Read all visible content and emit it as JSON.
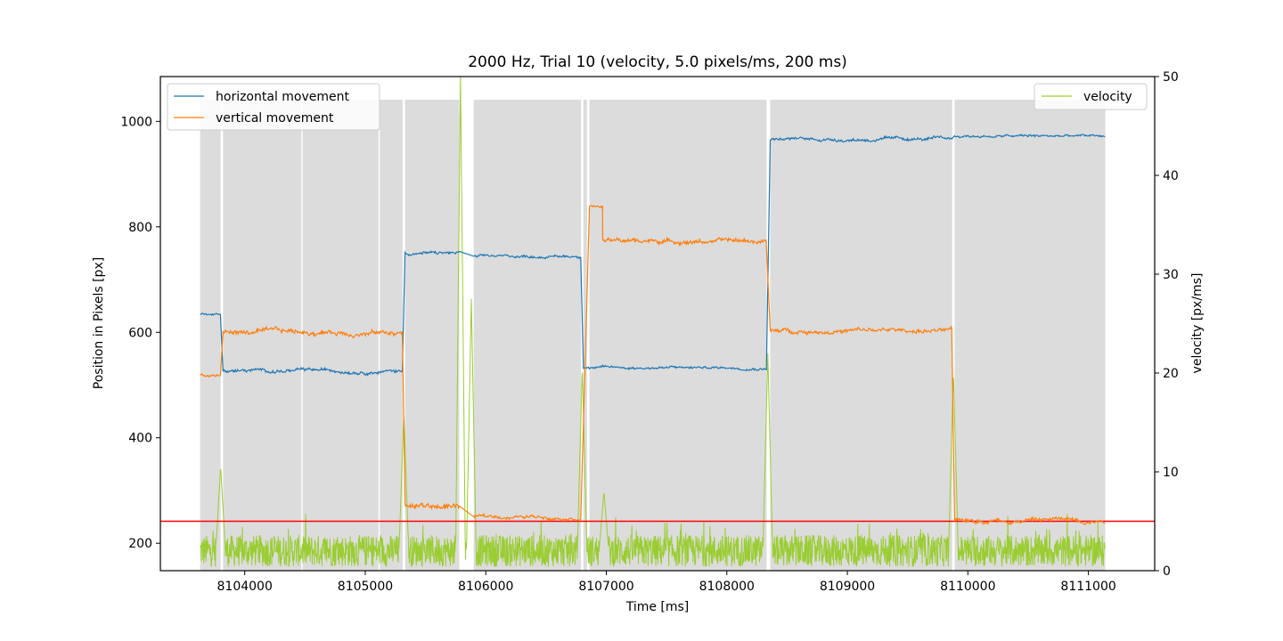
{
  "chart_data": {
    "type": "line",
    "title": "2000 Hz, Trial 10 (velocity, 5.0 pixels/ms, 200 ms)",
    "xlabel": "Time [ms]",
    "ylabel": "Position in Pixels [px]",
    "y2label": "velocity [px/ms]",
    "xlim": [
      8103300,
      8111550
    ],
    "ylim": [
      148,
      1085
    ],
    "y2lim": [
      0,
      50
    ],
    "xticks": [
      8104000,
      8105000,
      8106000,
      8107000,
      8108000,
      8109000,
      8110000,
      8111000
    ],
    "yticks": [
      200,
      400,
      600,
      800,
      1000
    ],
    "y2ticks": [
      0,
      10,
      20,
      30,
      40,
      50
    ],
    "threshold": 5.0,
    "threshold_color": "#ff0000",
    "colors": {
      "horizontal": "#1f77b4",
      "vertical": "#ff7f0e",
      "velocity": "#9acd32",
      "shade": "#dcdcdc"
    },
    "legend_left": [
      "horizontal movement",
      "vertical movement"
    ],
    "legend_right": [
      "velocity"
    ],
    "fixation_regions": [
      [
        8103630,
        8103800
      ],
      [
        8103820,
        8104470
      ],
      [
        8104480,
        8105110
      ],
      [
        8105120,
        8105310
      ],
      [
        8105330,
        8105780
      ],
      [
        8105900,
        8106790
      ],
      [
        8106810,
        8106840
      ],
      [
        8106860,
        8107000
      ],
      [
        8107000,
        8108330
      ],
      [
        8108360,
        8109870
      ],
      [
        8109890,
        8111140
      ]
    ],
    "series": [
      {
        "name": "horizontal movement",
        "segments": [
          {
            "x0": 8103630,
            "x1": 8103800,
            "y": 635,
            "noise": 2
          },
          {
            "x0": 8103820,
            "x1": 8105310,
            "y": 527,
            "noise": 4
          },
          {
            "x0": 8105330,
            "x1": 8105780,
            "y": 750,
            "noise": 4
          },
          {
            "x0": 8105900,
            "x1": 8106790,
            "y": 744,
            "noise": 3
          },
          {
            "x0": 8106810,
            "x1": 8108330,
            "y": 533,
            "noise": 3
          },
          {
            "x0": 8108360,
            "x1": 8109870,
            "y": 966,
            "noise": 4
          },
          {
            "x0": 8109890,
            "x1": 8111140,
            "y": 972,
            "noise": 3
          }
        ]
      },
      {
        "name": "vertical movement",
        "segments": [
          {
            "x0": 8103630,
            "x1": 8103800,
            "y": 518,
            "noise": 4
          },
          {
            "x0": 8103820,
            "x1": 8105310,
            "y": 600,
            "noise": 6
          },
          {
            "x0": 8105330,
            "x1": 8105780,
            "y": 270,
            "noise": 7
          },
          {
            "x0": 8105900,
            "x1": 8106790,
            "y": 250,
            "noise": 4
          },
          {
            "x0": 8106860,
            "x1": 8106970,
            "y": 838,
            "noise": 3
          },
          {
            "x0": 8106970,
            "x1": 8108330,
            "y": 773,
            "noise": 5
          },
          {
            "x0": 8108360,
            "x1": 8109870,
            "y": 603,
            "noise": 5
          },
          {
            "x0": 8109890,
            "x1": 8111140,
            "y": 245,
            "noise": 6
          }
        ]
      },
      {
        "name": "velocity",
        "baseline": 2.0,
        "noise": 2.0,
        "peaks": [
          {
            "x": 8103800,
            "v": 10.5
          },
          {
            "x": 8105320,
            "v": 16.0
          },
          {
            "x": 8105790,
            "v": 50.0
          },
          {
            "x": 8105880,
            "v": 27.5
          },
          {
            "x": 8106800,
            "v": 20.5
          },
          {
            "x": 8106980,
            "v": 8.0
          },
          {
            "x": 8108340,
            "v": 22.0
          },
          {
            "x": 8109880,
            "v": 20.0
          }
        ]
      }
    ]
  }
}
